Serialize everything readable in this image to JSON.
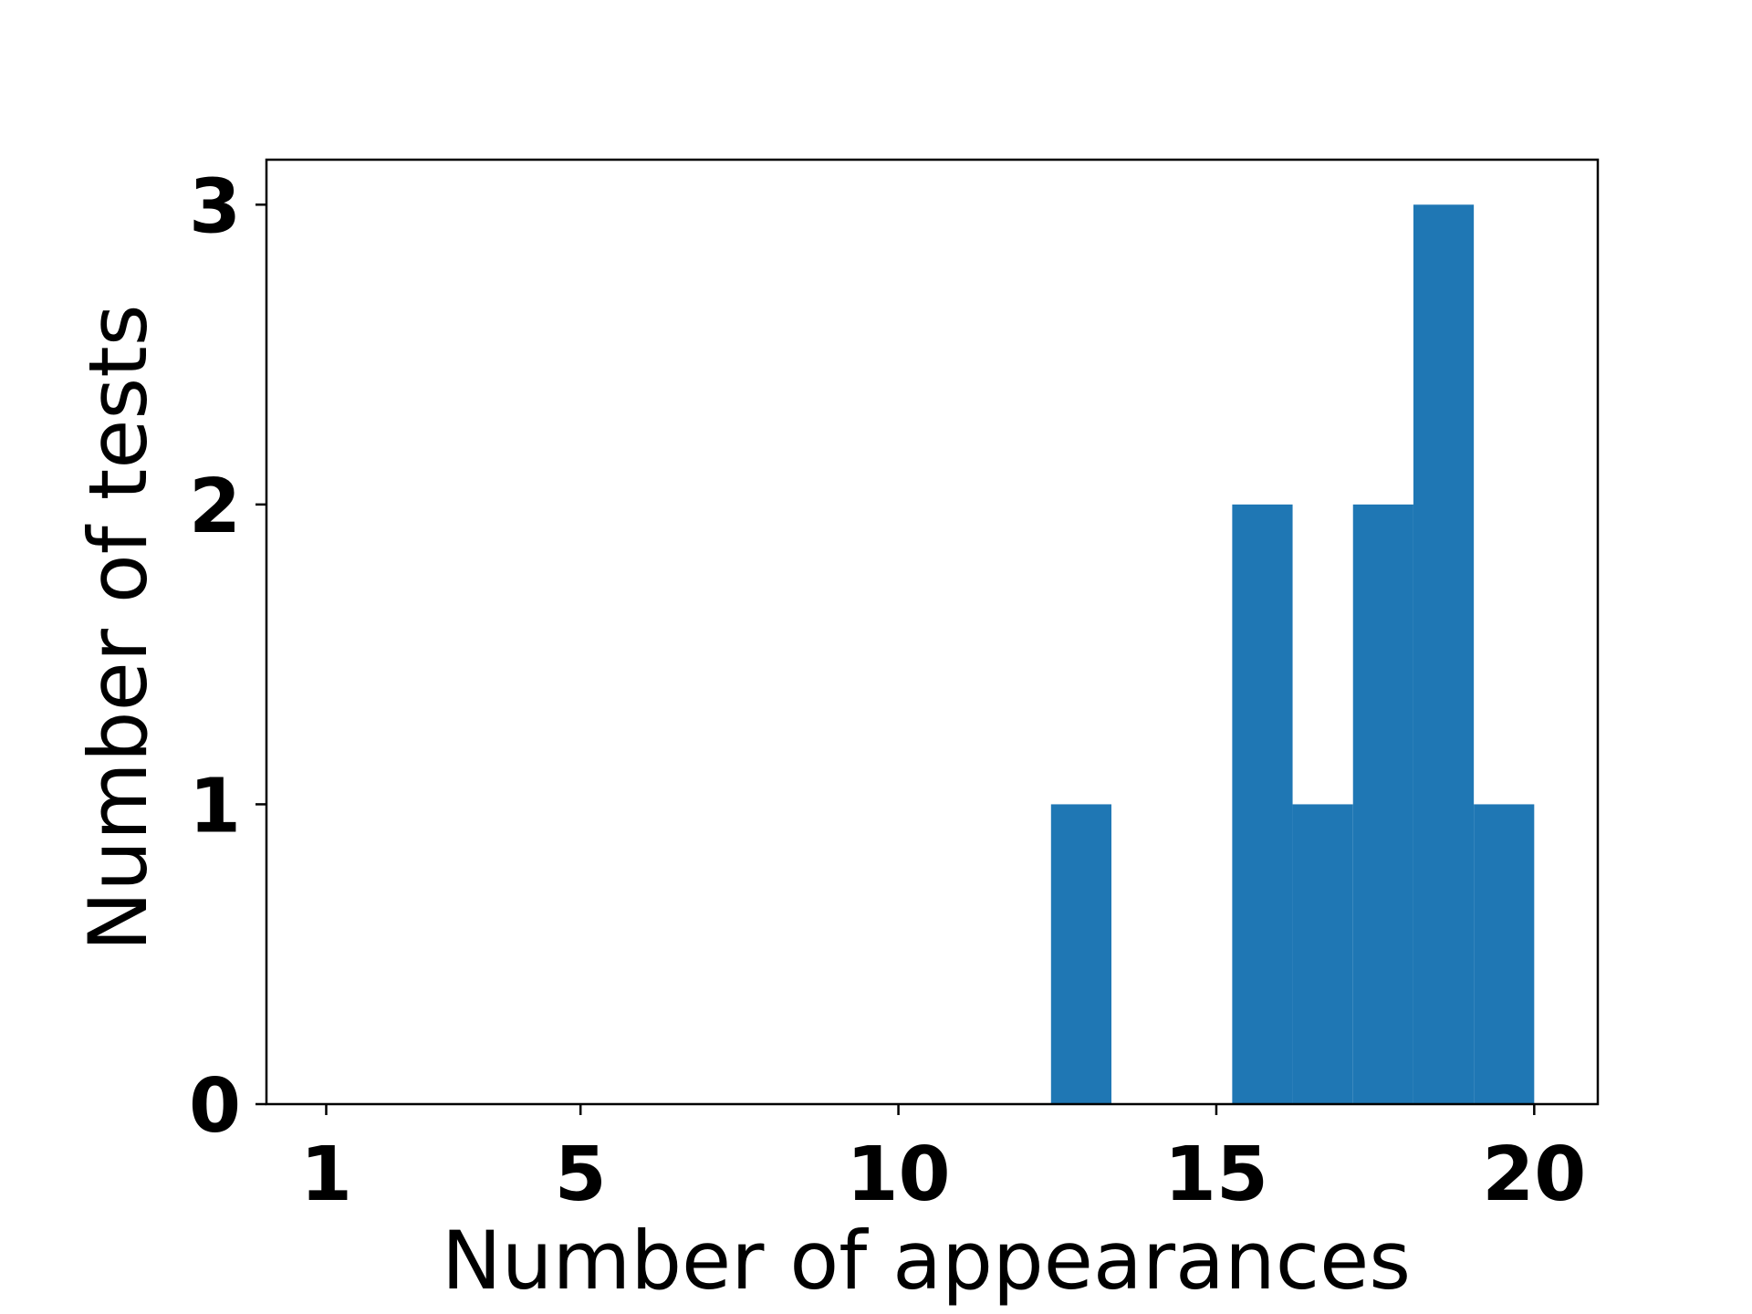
{
  "chart_data": {
    "type": "bar",
    "chart_kind": "histogram",
    "xlabel": "Number of appearances",
    "ylabel": "Number of tests",
    "xlim": [
      0.06,
      21.0
    ],
    "ylim": [
      0,
      3.15
    ],
    "xticks": [
      1,
      5,
      10,
      15,
      20
    ],
    "xtick_labels": [
      "1",
      "5",
      "10",
      "15",
      "20"
    ],
    "yticks": [
      0,
      1,
      2,
      3
    ],
    "ytick_labels": [
      "0",
      "1",
      "2",
      "3"
    ],
    "bins": [
      {
        "x_start": 12.4,
        "x_end": 13.35,
        "count": 1
      },
      {
        "x_start": 15.25,
        "x_end": 16.2,
        "count": 2
      },
      {
        "x_start": 16.2,
        "x_end": 17.15,
        "count": 1
      },
      {
        "x_start": 17.15,
        "x_end": 18.1,
        "count": 2
      },
      {
        "x_start": 18.1,
        "x_end": 19.05,
        "count": 3
      },
      {
        "x_start": 19.05,
        "x_end": 20.0,
        "count": 1
      }
    ],
    "bar_color": "#1f77b4",
    "grid": false,
    "legend": false
  }
}
